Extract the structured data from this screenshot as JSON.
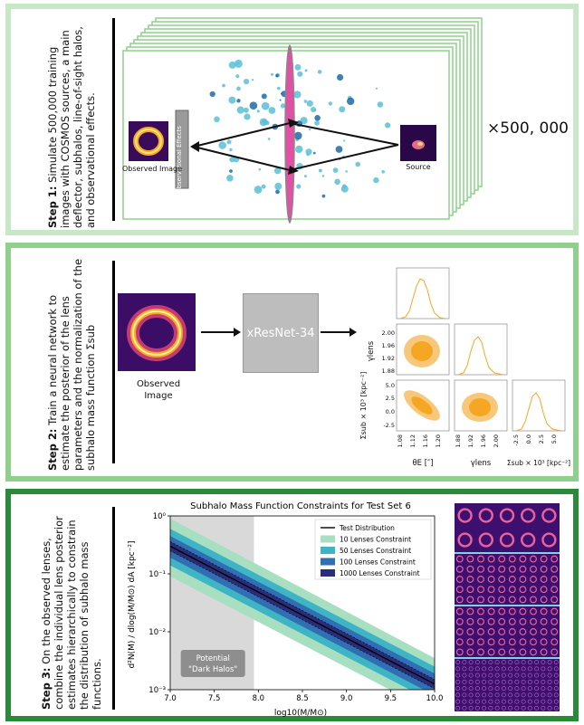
{
  "step1": {
    "label": "Step 1:",
    "text": "Simulate 500,000 training images with COSMOS sources, a main deflector, subhalos, line-of-sight halos, and observational effects.",
    "observed_image": "Observed Image",
    "observational_effects": "Observational Effects",
    "source": "Source",
    "multiplier": "×500, 000"
  },
  "step2": {
    "label": "Step 2:",
    "text": "Train a neural network to estimate the posterior of the lens parameters and the normalization of the subhalo mass function Σsub",
    "observed_image": "Observed Image",
    "network": "xResNet-34",
    "corner": {
      "ylabel_gamma": "γlens",
      "ylabel_sigma": "Σsub × 10³ [kpc⁻²]",
      "xlabel_theta": "θE [″]",
      "xlabel_gamma": "γlens",
      "xlabel_sigma": "Σsub × 10³ [kpc⁻²]",
      "yticks_gamma": [
        "2.00",
        "1.96",
        "1.92",
        "1.88"
      ],
      "yticks_sigma": [
        "5.0",
        "2.5",
        "0.0",
        "-2.5"
      ],
      "xticks_theta": [
        "1.08",
        "1.12",
        "1.16",
        "1.20"
      ],
      "xticks_gamma": [
        "1.88",
        "1.92",
        "1.96",
        "2.00"
      ],
      "xticks_sigma": [
        "-2.5",
        "0.0",
        "2.5",
        "5.0"
      ],
      "color": "#f5a623"
    }
  },
  "step3": {
    "label": "Step 3:",
    "text": "On the observed lenses, combine the individual lens posterior estimates hierarchically to constrain the distribution of subhalo mass functions."
  },
  "chart_data": {
    "type": "area",
    "title": "Subhalo Mass Function Constraints for Test Set 6",
    "xlabel": "log10(M/M⊙)",
    "ylabel": "d²N(M) / dlog(M/M⊙) dA   [kpc⁻²]",
    "xlim": [
      7.0,
      10.0
    ],
    "ylim_log10": [
      -3,
      0
    ],
    "log_y": true,
    "xticks": [
      "7.0",
      "7.5",
      "8.0",
      "8.5",
      "9.0",
      "9.5",
      "10.0"
    ],
    "yticks": [
      "10⁻³",
      "10⁻²",
      "10⁻¹",
      "10⁰"
    ],
    "shaded_region_label": "Potential \"Dark Halos\"",
    "shaded_region_x": [
      7.0,
      7.95
    ],
    "legend_position": "top-right",
    "test_distribution": {
      "name": "Test Distribution",
      "x": [
        7.0,
        10.0
      ],
      "y": [
        0.3,
        0.00125
      ],
      "color": "#000000"
    },
    "series": [
      {
        "name": "10 Lenses Constraint",
        "color": "#a8dfc0",
        "upper": [
          0.9,
          0.0035
        ],
        "lower": [
          0.09,
          0.0004
        ]
      },
      {
        "name": "50 Lenses Constraint",
        "color": "#3fb4c4",
        "upper": [
          0.6,
          0.0025
        ],
        "lower": [
          0.14,
          0.0006
        ]
      },
      {
        "name": "100 Lenses Constraint",
        "color": "#2f6fb2",
        "upper": [
          0.45,
          0.0019
        ],
        "lower": [
          0.19,
          0.0008
        ]
      },
      {
        "name": "1000 Lenses Constraint",
        "color": "#2a2d7c",
        "upper": [
          0.36,
          0.0015
        ],
        "lower": [
          0.25,
          0.00104
        ]
      }
    ]
  }
}
